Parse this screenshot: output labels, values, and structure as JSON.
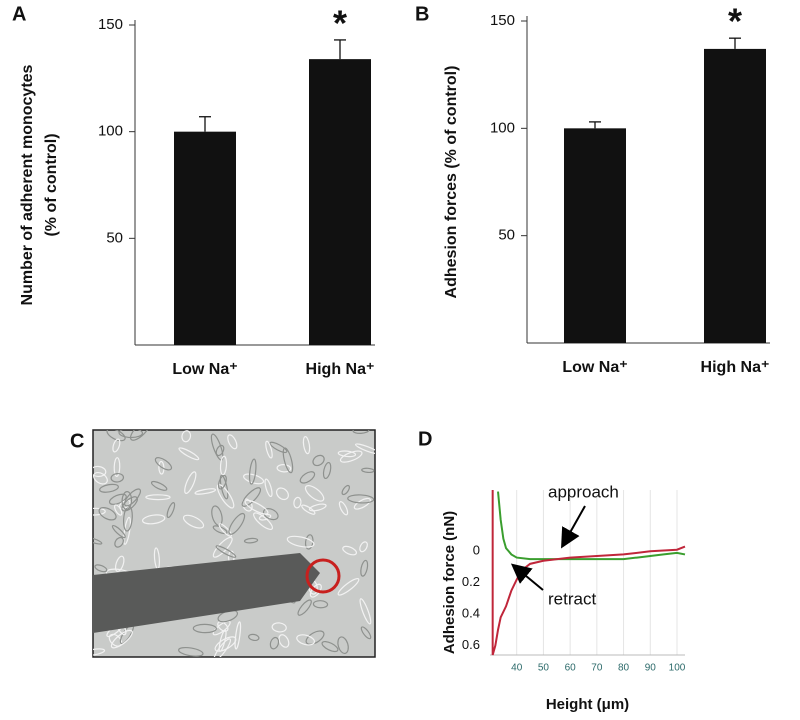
{
  "chart_data": [
    {
      "type": "bar",
      "panel_label": "A",
      "y_label_lines": [
        "Number of adherent monocytes",
        "(% of control)"
      ],
      "categories": [
        "Low Na⁺",
        "High Na⁺"
      ],
      "values": [
        100,
        134
      ],
      "errors": [
        7,
        9
      ],
      "color": "#111111",
      "annotation": "*",
      "ylim": [
        0,
        150
      ],
      "yticks": [
        50,
        100,
        150
      ]
    },
    {
      "type": "bar",
      "panel_label": "B",
      "y_label_lines": [
        "Adhesion forces (% of control)"
      ],
      "categories": [
        "Low Na⁺",
        "High Na⁺"
      ],
      "values": [
        100,
        137
      ],
      "errors": [
        3,
        5
      ],
      "color": "#111111",
      "annotation": "*",
      "ylim": [
        0,
        150
      ],
      "yticks": [
        50,
        100,
        150
      ]
    },
    {
      "type": "line",
      "panel_label": "D",
      "y_label": "Adhesion force (nN)",
      "x_label": "Height (μm)",
      "xlim": [
        30,
        103
      ],
      "xticks": [
        40,
        50,
        60,
        70,
        80,
        90,
        100
      ],
      "ylim": [
        -0.39,
        0.66
      ],
      "y_inverted": true,
      "yticks": [
        0,
        0.2,
        0.4,
        0.6
      ],
      "grid": true,
      "annotations": [
        "approach",
        "retract"
      ],
      "series": [
        {
          "color": "#3a9e2e",
          "x": [
            33,
            34,
            35,
            36,
            37,
            38,
            40,
            45,
            50,
            60,
            70,
            80,
            85,
            90,
            95,
            100,
            103
          ],
          "values": [
            -0.38,
            -0.2,
            -0.08,
            -0.02,
            0.0,
            0.02,
            0.04,
            0.05,
            0.05,
            0.05,
            0.05,
            0.05,
            0.04,
            0.03,
            0.02,
            0.01,
            0.02
          ]
        },
        {
          "color": "#c0263a",
          "x": [
            31,
            31,
            32,
            33,
            34,
            36,
            38,
            40,
            42,
            45,
            50,
            60,
            70,
            80,
            90,
            100,
            103
          ],
          "values": [
            -0.39,
            0.66,
            0.6,
            0.5,
            0.42,
            0.35,
            0.25,
            0.18,
            0.12,
            0.08,
            0.06,
            0.04,
            0.03,
            0.02,
            0.0,
            -0.01,
            -0.03
          ]
        }
      ]
    }
  ],
  "image_panel": {
    "panel_label": "C"
  }
}
